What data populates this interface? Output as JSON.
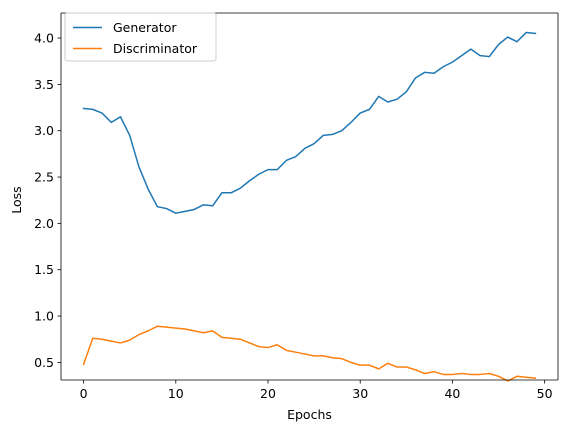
{
  "chart_data": {
    "type": "line",
    "title": "",
    "xlabel": "Epochs",
    "ylabel": "Loss",
    "xlim": [
      -2.45,
      51.45
    ],
    "ylim": [
      0.31,
      4.27
    ],
    "xticks": [
      0,
      10,
      20,
      30,
      40,
      50
    ],
    "yticks": [
      0.5,
      1.0,
      1.5,
      2.0,
      2.5,
      3.0,
      3.5,
      4.0
    ],
    "xtick_labels": [
      "0",
      "10",
      "20",
      "30",
      "40",
      "50"
    ],
    "ytick_labels": [
      "0.5",
      "1.0",
      "1.5",
      "2.0",
      "2.5",
      "3.0",
      "3.5",
      "4.0"
    ],
    "grid": false,
    "legend_position": "top-left",
    "x": [
      0,
      1,
      2,
      3,
      4,
      5,
      6,
      7,
      8,
      9,
      10,
      11,
      12,
      13,
      14,
      15,
      16,
      17,
      18,
      19,
      20,
      21,
      22,
      23,
      24,
      25,
      26,
      27,
      28,
      29,
      30,
      31,
      32,
      33,
      34,
      35,
      36,
      37,
      38,
      39,
      40,
      41,
      42,
      43,
      44,
      45,
      46,
      47,
      48,
      49
    ],
    "series": [
      {
        "name": "Generator",
        "color": "#1f77b4",
        "values": [
          3.24,
          3.23,
          3.19,
          3.09,
          3.15,
          2.95,
          2.61,
          2.37,
          2.18,
          2.16,
          2.11,
          2.13,
          2.15,
          2.2,
          2.19,
          2.33,
          2.33,
          2.38,
          2.46,
          2.53,
          2.58,
          2.58,
          2.68,
          2.72,
          2.81,
          2.86,
          2.95,
          2.96,
          3.0,
          3.09,
          3.19,
          3.23,
          3.37,
          3.31,
          3.34,
          3.42,
          3.57,
          3.63,
          3.62,
          3.69,
          3.74,
          3.81,
          3.88,
          3.81,
          3.8,
          3.93,
          4.01,
          3.96,
          4.06,
          4.05
        ]
      },
      {
        "name": "Discriminator",
        "color": "#ff7f0e",
        "values": [
          0.48,
          0.76,
          0.75,
          0.73,
          0.71,
          0.74,
          0.8,
          0.84,
          0.89,
          0.88,
          0.87,
          0.86,
          0.84,
          0.82,
          0.84,
          0.77,
          0.76,
          0.75,
          0.71,
          0.67,
          0.66,
          0.69,
          0.63,
          0.61,
          0.59,
          0.57,
          0.57,
          0.55,
          0.54,
          0.5,
          0.47,
          0.47,
          0.43,
          0.49,
          0.45,
          0.45,
          0.42,
          0.38,
          0.4,
          0.37,
          0.37,
          0.38,
          0.37,
          0.37,
          0.38,
          0.35,
          0.3,
          0.35,
          0.34,
          0.33
        ]
      }
    ]
  }
}
